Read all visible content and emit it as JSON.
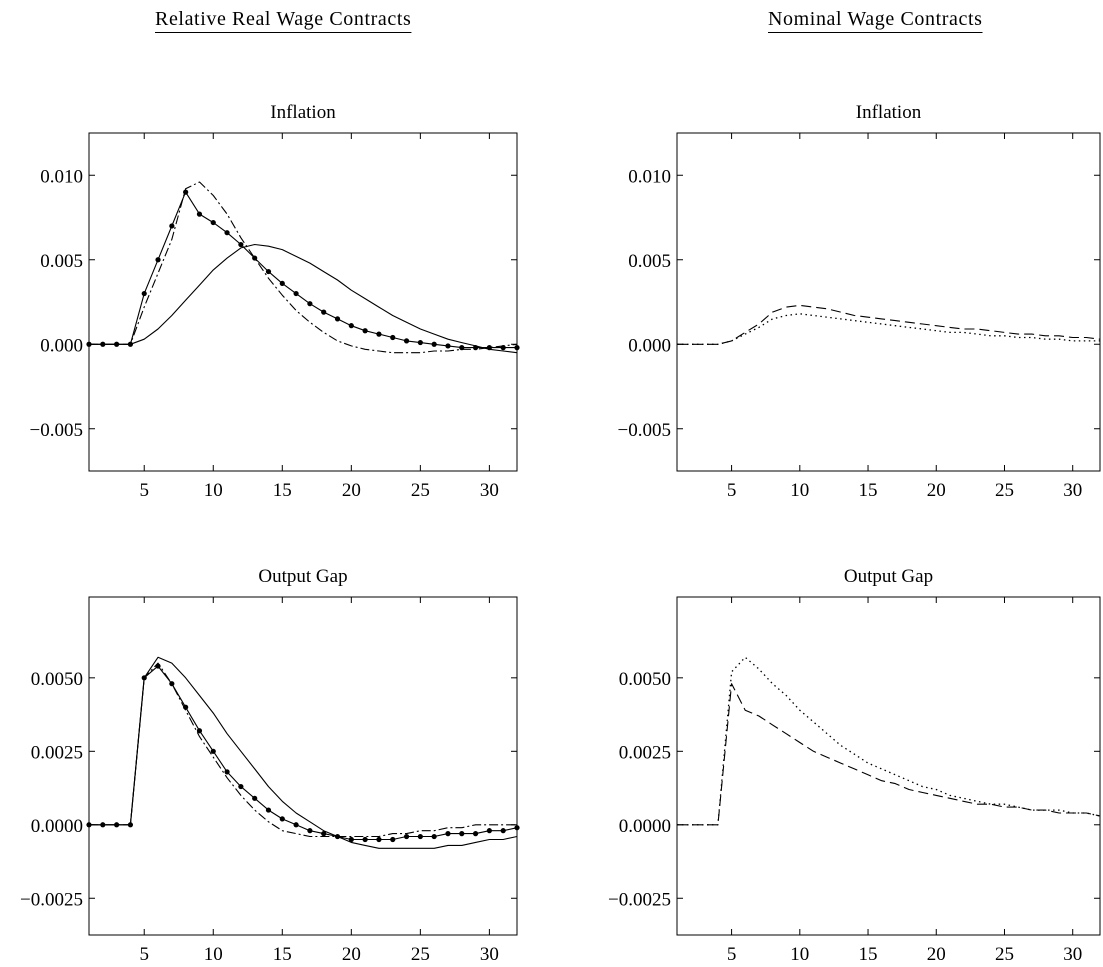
{
  "columns": [
    {
      "title": "Relative Real Wage Contracts"
    },
    {
      "title": "Nominal Wage Contracts"
    }
  ],
  "chart_data": [
    {
      "type": "line",
      "title": "Inflation",
      "xlim": [
        1,
        32
      ],
      "ylim": [
        -0.0075,
        0.0125
      ],
      "xticks": [
        5,
        10,
        15,
        20,
        25,
        30
      ],
      "yticks": [
        -0.005,
        0,
        0.005,
        0.01
      ],
      "ytick_labels": [
        "−0.005",
        "0.000",
        "0.005",
        "0.010"
      ],
      "xtick_labels": [
        "5",
        "10",
        "15",
        "20",
        "25",
        "30"
      ],
      "grid": false,
      "series": [
        {
          "style": "solid",
          "x": [
            1,
            2,
            3,
            4,
            5,
            6,
            7,
            8,
            9,
            10,
            11,
            12,
            13,
            14,
            15,
            16,
            17,
            18,
            19,
            20,
            21,
            22,
            23,
            24,
            25,
            26,
            27,
            28,
            29,
            30,
            31,
            32
          ],
          "y": [
            0,
            0,
            0,
            0,
            0.0003,
            0.0009,
            0.0017,
            0.0026,
            0.0035,
            0.0044,
            0.0051,
            0.0057,
            0.0059,
            0.0058,
            0.0056,
            0.0052,
            0.0048,
            0.0043,
            0.0038,
            0.0032,
            0.0027,
            0.0022,
            0.0017,
            0.0013,
            0.0009,
            0.0006,
            0.0003,
            0.0001,
            -0.0001,
            -0.0003,
            -0.0004,
            -0.0005
          ]
        },
        {
          "style": "dashdot",
          "x": [
            1,
            2,
            3,
            4,
            5,
            6,
            7,
            8,
            9,
            10,
            11,
            12,
            13,
            14,
            15,
            16,
            17,
            18,
            19,
            20,
            21,
            22,
            23,
            24,
            25,
            26,
            27,
            28,
            29,
            30,
            31,
            32
          ],
          "y": [
            0,
            0,
            0,
            0,
            0.0022,
            0.0042,
            0.0062,
            0.0092,
            0.0096,
            0.0088,
            0.0077,
            0.0063,
            0.0051,
            0.0039,
            0.0029,
            0.002,
            0.0013,
            0.0007,
            0.0002,
            -0.0001,
            -0.0003,
            -0.0004,
            -0.0005,
            -0.0005,
            -0.0005,
            -0.0004,
            -0.0004,
            -0.0003,
            -0.0003,
            -0.0002,
            -0.0001,
            0
          ]
        },
        {
          "style": "solid-dots",
          "x": [
            1,
            2,
            3,
            4,
            5,
            6,
            7,
            8,
            9,
            10,
            11,
            12,
            13,
            14,
            15,
            16,
            17,
            18,
            19,
            20,
            21,
            22,
            23,
            24,
            25,
            26,
            27,
            28,
            29,
            30,
            31,
            32
          ],
          "y": [
            0,
            0,
            0,
            0,
            0.003,
            0.005,
            0.007,
            0.009,
            0.0077,
            0.0072,
            0.0066,
            0.0059,
            0.0051,
            0.0043,
            0.0036,
            0.003,
            0.0024,
            0.0019,
            0.0015,
            0.0011,
            0.0008,
            0.0006,
            0.0004,
            0.0002,
            0.0001,
            0,
            -0.0001,
            -0.0002,
            -0.0002,
            -0.0002,
            -0.0002,
            -0.0002
          ]
        }
      ]
    },
    {
      "type": "line",
      "title": "Inflation",
      "xlim": [
        1,
        32
      ],
      "ylim": [
        -0.0075,
        0.0125
      ],
      "xticks": [
        5,
        10,
        15,
        20,
        25,
        30
      ],
      "yticks": [
        -0.005,
        0,
        0.005,
        0.01
      ],
      "ytick_labels": [
        "−0.005",
        "0.000",
        "0.005",
        "0.010"
      ],
      "xtick_labels": [
        "5",
        "10",
        "15",
        "20",
        "25",
        "30"
      ],
      "grid": false,
      "series": [
        {
          "style": "dashed",
          "x": [
            1,
            2,
            3,
            4,
            5,
            6,
            7,
            8,
            9,
            10,
            11,
            12,
            13,
            14,
            15,
            16,
            17,
            18,
            19,
            20,
            21,
            22,
            23,
            24,
            25,
            26,
            27,
            28,
            29,
            30,
            31,
            32
          ],
          "y": [
            0,
            0,
            0,
            0,
            0.0002,
            0.0007,
            0.0012,
            0.0019,
            0.0022,
            0.0023,
            0.0022,
            0.0021,
            0.0019,
            0.0017,
            0.0016,
            0.0015,
            0.0014,
            0.0013,
            0.0012,
            0.0011,
            0.001,
            0.0009,
            0.0009,
            0.0008,
            0.0007,
            0.0006,
            0.0006,
            0.0005,
            0.0005,
            0.0004,
            0.0004,
            0.0003
          ]
        },
        {
          "style": "dotted",
          "x": [
            1,
            2,
            3,
            4,
            5,
            6,
            7,
            8,
            9,
            10,
            11,
            12,
            13,
            14,
            15,
            16,
            17,
            18,
            19,
            20,
            21,
            22,
            23,
            24,
            25,
            26,
            27,
            28,
            29,
            30,
            31,
            32
          ],
          "y": [
            0,
            0,
            0,
            0,
            0.0002,
            0.0006,
            0.001,
            0.0015,
            0.0017,
            0.0018,
            0.0017,
            0.0016,
            0.0015,
            0.0014,
            0.0013,
            0.0012,
            0.0011,
            0.001,
            0.0009,
            0.0008,
            0.0007,
            0.0007,
            0.0006,
            0.0005,
            0.0005,
            0.0004,
            0.0004,
            0.0003,
            0.0003,
            0.0002,
            0.0002,
            0.0002
          ]
        }
      ]
    },
    {
      "type": "line",
      "title": "Output Gap",
      "xlim": [
        1,
        32
      ],
      "ylim": [
        -0.00375,
        0.00775
      ],
      "xticks": [
        5,
        10,
        15,
        20,
        25,
        30
      ],
      "yticks": [
        -0.0025,
        0,
        0.0025,
        0.005
      ],
      "ytick_labels": [
        "−0.0025",
        "0.0000",
        "0.0025",
        "0.0050"
      ],
      "xtick_labels": [
        "5",
        "10",
        "15",
        "20",
        "25",
        "30"
      ],
      "grid": false,
      "series": [
        {
          "style": "solid",
          "x": [
            1,
            2,
            3,
            4,
            5,
            6,
            7,
            8,
            9,
            10,
            11,
            12,
            13,
            14,
            15,
            16,
            17,
            18,
            19,
            20,
            21,
            22,
            23,
            24,
            25,
            26,
            27,
            28,
            29,
            30,
            31,
            32
          ],
          "y": [
            0,
            0,
            0,
            0,
            0.005,
            0.0057,
            0.0055,
            0.005,
            0.0044,
            0.0038,
            0.0031,
            0.0025,
            0.0019,
            0.0013,
            0.0008,
            0.0004,
            0.0001,
            -0.0002,
            -0.0004,
            -0.0006,
            -0.0007,
            -0.0008,
            -0.0008,
            -0.0008,
            -0.0008,
            -0.0008,
            -0.0007,
            -0.0007,
            -0.0006,
            -0.0005,
            -0.0005,
            -0.0004
          ]
        },
        {
          "style": "dashdot",
          "x": [
            1,
            2,
            3,
            4,
            5,
            6,
            7,
            8,
            9,
            10,
            11,
            12,
            13,
            14,
            15,
            16,
            17,
            18,
            19,
            20,
            21,
            22,
            23,
            24,
            25,
            26,
            27,
            28,
            29,
            30,
            31,
            32
          ],
          "y": [
            0,
            0,
            0,
            0,
            0.005,
            0.0055,
            0.0048,
            0.0039,
            0.003,
            0.0023,
            0.0016,
            0.001,
            0.0005,
            0.0001,
            -0.0002,
            -0.0003,
            -0.0004,
            -0.0004,
            -0.0004,
            -0.0004,
            -0.0004,
            -0.0004,
            -0.0003,
            -0.0003,
            -0.0002,
            -0.0002,
            -0.0001,
            -0.0001,
            0,
            0,
            0,
            0
          ]
        },
        {
          "style": "solid-dots",
          "x": [
            1,
            2,
            3,
            4,
            5,
            6,
            7,
            8,
            9,
            10,
            11,
            12,
            13,
            14,
            15,
            16,
            17,
            18,
            19,
            20,
            21,
            22,
            23,
            24,
            25,
            26,
            27,
            28,
            29,
            30,
            31,
            32
          ],
          "y": [
            0,
            0,
            0,
            0,
            0.005,
            0.0054,
            0.0048,
            0.004,
            0.0032,
            0.0025,
            0.0018,
            0.0013,
            0.0009,
            0.0005,
            0.0002,
            0,
            -0.0002,
            -0.0003,
            -0.0004,
            -0.0005,
            -0.0005,
            -0.0005,
            -0.0005,
            -0.0004,
            -0.0004,
            -0.0004,
            -0.0003,
            -0.0003,
            -0.0003,
            -0.0002,
            -0.0002,
            -0.0001
          ]
        }
      ]
    },
    {
      "type": "line",
      "title": "Output Gap",
      "xlim": [
        1,
        32
      ],
      "ylim": [
        -0.00375,
        0.00775
      ],
      "xticks": [
        5,
        10,
        15,
        20,
        25,
        30
      ],
      "yticks": [
        -0.0025,
        0,
        0.0025,
        0.005
      ],
      "ytick_labels": [
        "−0.0025",
        "0.0000",
        "0.0025",
        "0.0050"
      ],
      "xtick_labels": [
        "5",
        "10",
        "15",
        "20",
        "25",
        "30"
      ],
      "grid": false,
      "series": [
        {
          "style": "dashed",
          "x": [
            1,
            2,
            3,
            4,
            5,
            6,
            7,
            8,
            9,
            10,
            11,
            12,
            13,
            14,
            15,
            16,
            17,
            18,
            19,
            20,
            21,
            22,
            23,
            24,
            25,
            26,
            27,
            28,
            29,
            30,
            31,
            32
          ],
          "y": [
            0,
            0,
            0,
            0,
            0.0048,
            0.0039,
            0.0037,
            0.0034,
            0.0031,
            0.0028,
            0.0025,
            0.0023,
            0.0021,
            0.0019,
            0.0017,
            0.0015,
            0.0014,
            0.0012,
            0.0011,
            0.001,
            0.0009,
            0.0008,
            0.0007,
            0.0007,
            0.0006,
            0.0006,
            0.0005,
            0.0005,
            0.0004,
            0.0004,
            0.0004,
            0.0003
          ]
        },
        {
          "style": "dotted",
          "x": [
            1,
            2,
            3,
            4,
            5,
            6,
            7,
            8,
            9,
            10,
            11,
            12,
            13,
            14,
            15,
            16,
            17,
            18,
            19,
            20,
            21,
            22,
            23,
            24,
            25,
            26,
            27,
            28,
            29,
            30,
            31,
            32
          ],
          "y": [
            0,
            0,
            0,
            0,
            0.0052,
            0.0057,
            0.0053,
            0.0048,
            0.0044,
            0.0039,
            0.0035,
            0.0031,
            0.0027,
            0.0024,
            0.0021,
            0.0019,
            0.0017,
            0.0015,
            0.0013,
            0.0012,
            0.001,
            0.0009,
            0.0008,
            0.0007,
            0.0007,
            0.0006,
            0.0005,
            0.0005,
            0.0005,
            0.0004,
            0.0004,
            0.0003
          ]
        }
      ]
    }
  ]
}
